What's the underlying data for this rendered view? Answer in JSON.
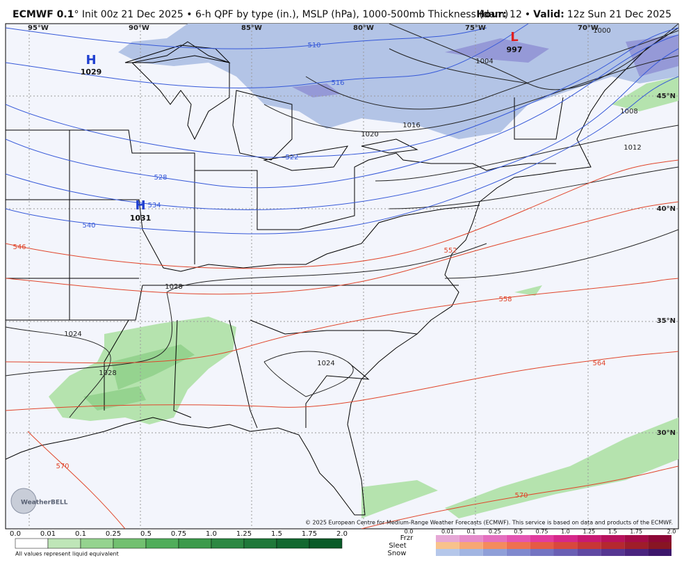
{
  "header": {
    "model": "ECMWF 0.1",
    "description": "° Init 00z 21 Dec 2025 • 6-h QPF by type (in.), MSLP (hPa), 1000-500mb Thickness (dam)",
    "hour_label": "Hour:",
    "hour": "12",
    "separator": "•",
    "valid_label": "Valid:",
    "valid": "12z Sun 21 Dec 2025"
  },
  "map": {
    "lon_labels": [
      "95°W",
      "90°W",
      "85°W",
      "80°W",
      "75°W",
      "70°W"
    ],
    "lat_labels": [
      "45°N",
      "40°N",
      "35°N",
      "30°N"
    ],
    "pressure_centers": [
      {
        "symbol": "H",
        "value": "1029"
      },
      {
        "symbol": "H",
        "value": "1031"
      },
      {
        "symbol": "L",
        "value": "997"
      }
    ],
    "isobar_labels": [
      "1000",
      "1004",
      "1008",
      "1012",
      "1016",
      "1020",
      "1024",
      "1024",
      "1028",
      "1028"
    ],
    "thickness_labels": [
      "510",
      "516",
      "522",
      "528",
      "534",
      "540",
      "546",
      "552",
      "558",
      "564",
      "570",
      "570"
    ],
    "logo": "WeatherBELL",
    "copyright": "© 2025 European Centre for Medium-Range Weather Forecasts (ECMWF). This service is based on data and products of the ECMWF."
  },
  "legend": {
    "qpf": {
      "ticks": [
        "0.0",
        "0.01",
        "0.1",
        "0.25",
        "0.5",
        "0.75",
        "1.0",
        "1.25",
        "1.5",
        "1.75",
        "2.0"
      ],
      "colors": [
        "#ffffff",
        "#bfe6b8",
        "#95d38f",
        "#72c070",
        "#50ad5a",
        "#3c9a4b",
        "#2c8842",
        "#1f7839",
        "#136830",
        "#095b28"
      ],
      "note": "All values represent liquid equivalent"
    },
    "ptype": {
      "types": [
        "Frzr",
        "Sleet",
        "Snow"
      ],
      "ticks": [
        "0.0",
        "0.01",
        "0.1",
        "0.25",
        "0.5",
        "0.75",
        "1.0",
        "1.25",
        "1.5",
        "1.75",
        "2.0"
      ],
      "colors": [
        [
          "#e6a8d6",
          "#e58ccb",
          "#e470bf",
          "#e455b2",
          "#e23c9f",
          "#d6288a",
          "#c81a73",
          "#b8125d",
          "#a40c48",
          "#8c0836"
        ],
        [
          "#f8c28c",
          "#f7a774",
          "#f48b5e",
          "#ef7050",
          "#e65a45",
          "#d9473d",
          "#c83636",
          "#b5282f",
          "#9f1d29",
          "#881523"
        ],
        [
          "#b5c7ea",
          "#a2b5e2",
          "#8f9fd8",
          "#8089ce",
          "#7474c2",
          "#6a5fb4",
          "#6049a3",
          "#563692",
          "#4a247f",
          "#3d166b"
        ]
      ]
    }
  }
}
